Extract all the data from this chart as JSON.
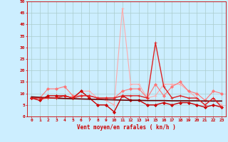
{
  "background_color": "#cceeff",
  "grid_color": "#aacccc",
  "xlabel": "Vent moyen/en rafales ( kn/h )",
  "xlabel_color": "#cc0000",
  "tick_color": "#cc0000",
  "xlim": [
    -0.5,
    23.5
  ],
  "ylim": [
    0,
    50
  ],
  "yticks": [
    0,
    5,
    10,
    15,
    20,
    25,
    30,
    35,
    40,
    45,
    50
  ],
  "xticks": [
    0,
    1,
    2,
    3,
    4,
    5,
    6,
    7,
    8,
    9,
    10,
    11,
    12,
    13,
    14,
    15,
    16,
    17,
    18,
    19,
    20,
    21,
    22,
    23
  ],
  "series": [
    {
      "x": [
        0,
        1,
        2,
        3,
        4,
        5,
        6,
        7,
        8,
        9,
        10,
        11,
        12,
        13,
        14,
        15,
        16,
        17,
        18,
        19,
        20,
        21,
        22,
        23
      ],
      "y": [
        8,
        7,
        8,
        8,
        9,
        8,
        11,
        11,
        8,
        7,
        5,
        47,
        14,
        14,
        8,
        9,
        14,
        14,
        14,
        11,
        8,
        5,
        8,
        5
      ],
      "color": "#ffaaaa",
      "linewidth": 0.8,
      "marker": "+",
      "markersize": 3
    },
    {
      "x": [
        0,
        1,
        2,
        3,
        4,
        5,
        6,
        7,
        8,
        9,
        10,
        11,
        12,
        13,
        14,
        15,
        16,
        17,
        18,
        19,
        20,
        21,
        22,
        23
      ],
      "y": [
        8,
        8,
        12,
        12,
        13,
        9,
        9,
        9,
        8,
        8,
        8,
        11,
        12,
        12,
        8,
        14,
        9,
        13,
        15,
        11,
        10,
        7,
        11,
        10
      ],
      "color": "#ff7777",
      "linewidth": 0.8,
      "marker": "D",
      "markersize": 2
    },
    {
      "x": [
        0,
        1,
        2,
        3,
        4,
        5,
        6,
        7,
        8,
        9,
        10,
        11,
        12,
        13,
        14,
        15,
        16,
        17,
        18,
        19,
        20,
        21,
        22,
        23
      ],
      "y": [
        8,
        7,
        9,
        9,
        9,
        8,
        11,
        8,
        5,
        5,
        2,
        9,
        7,
        7,
        5,
        5,
        6,
        5,
        6,
        6,
        5,
        4,
        5,
        4
      ],
      "color": "#cc0000",
      "linewidth": 1.0,
      "marker": "D",
      "markersize": 2
    },
    {
      "x": [
        0,
        1,
        2,
        3,
        4,
        5,
        6,
        7,
        8,
        9,
        10,
        11,
        12,
        13,
        14,
        15,
        16,
        17,
        18,
        19,
        20,
        21,
        22,
        23
      ],
      "y": [
        8.5,
        8.3,
        8.1,
        7.9,
        7.8,
        7.7,
        7.6,
        7.5,
        7.4,
        7.3,
        7.2,
        7.1,
        7.0,
        7.0,
        6.9,
        6.9,
        6.9,
        6.8,
        6.8,
        6.8,
        6.8,
        6.7,
        6.7,
        6.7
      ],
      "color": "#660000",
      "linewidth": 1.2,
      "marker": null,
      "markersize": 0
    },
    {
      "x": [
        0,
        1,
        2,
        3,
        4,
        5,
        6,
        7,
        8,
        9,
        10,
        11,
        12,
        13,
        14,
        15,
        16,
        17,
        18,
        19,
        20,
        21,
        22,
        23
      ],
      "y": [
        8,
        8,
        8,
        8,
        9,
        8,
        9,
        9,
        8,
        8,
        8,
        9,
        9,
        9,
        8,
        32,
        13,
        8,
        9,
        8,
        8,
        5,
        8,
        4
      ],
      "color": "#dd2222",
      "linewidth": 1.0,
      "marker": "+",
      "markersize": 3
    }
  ]
}
